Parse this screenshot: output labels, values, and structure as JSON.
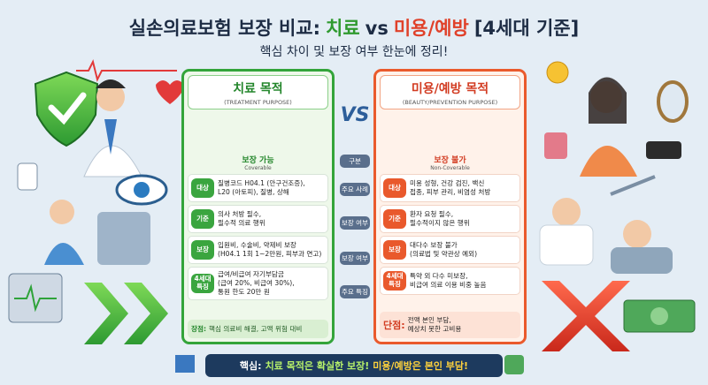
{
  "header": {
    "title_start": "실손의료보험 보장 비교:",
    "title_treat": "치료",
    "title_vs": "vs",
    "title_beauty": "미용/예방",
    "title_end": "[4세대 기준]",
    "subtitle": "핵심 차이 및 보장 여부 한눈에 정리!"
  },
  "treatment": {
    "title": "치료 목적",
    "subtitle": "(TREATMENT PURPOSE)",
    "status": "보장 가능",
    "status_en": "Coverable",
    "rows": [
      {
        "label": "대상",
        "lines": [
          "질병코드 H04.1 (안구건조증),",
          "L20 (아토피), 질병, 상해"
        ]
      },
      {
        "label": "기준",
        "lines": [
          "의사 처방 필수,",
          "필수적 의료 행위"
        ]
      },
      {
        "label": "보장",
        "lines": [
          "입원비, 수술비, 약제비 보장",
          "(H04.1 1회 1~2만원, 피부과 연고)"
        ]
      },
      {
        "label": "4세대 특징",
        "lines": [
          "급여/비급여 자기부담금",
          "(급여 20%, 비급여 30%),",
          "통원 한도 20만 원"
        ]
      }
    ],
    "summary_label": "장점:",
    "summary": "핵심 의료비 해결, 고액 위험 대비"
  },
  "vs": "VS",
  "criteria": [
    "구분",
    "주요 사례",
    "보장 여부",
    "보장 여부",
    "주요 특징"
  ],
  "beauty": {
    "title": "미용/예방 목적",
    "subtitle": "(BEAUTY/PREVENTION PURPOSE)",
    "status": "보장 불가",
    "status_en": "Non-Coverable",
    "rows": [
      {
        "label": "대상",
        "lines": [
          "미용 성형, 건강 검진, 백신",
          "접종, 피부 관리, 비염성 처방"
        ]
      },
      {
        "label": "기준",
        "lines": [
          "환자 요청 필수,",
          "필수적이지 않은 행위"
        ]
      },
      {
        "label": "보장",
        "lines": [
          "대다수 보장 불가",
          "(의료법 및 약관상 예외)"
        ]
      },
      {
        "label": "4세대 특징",
        "lines": [
          "특약 외 다수 미보장,",
          "비급여 의료 이용 비중 높음"
        ]
      }
    ],
    "summary_label": "단점:",
    "summary": "전액 본인 부담,\n예상치 못한 고비용"
  },
  "footer": {
    "label": "핵심:",
    "treat": "치료 목적은 확실한 보장!",
    "beauty": "미용/예방은 본인 부담!"
  }
}
